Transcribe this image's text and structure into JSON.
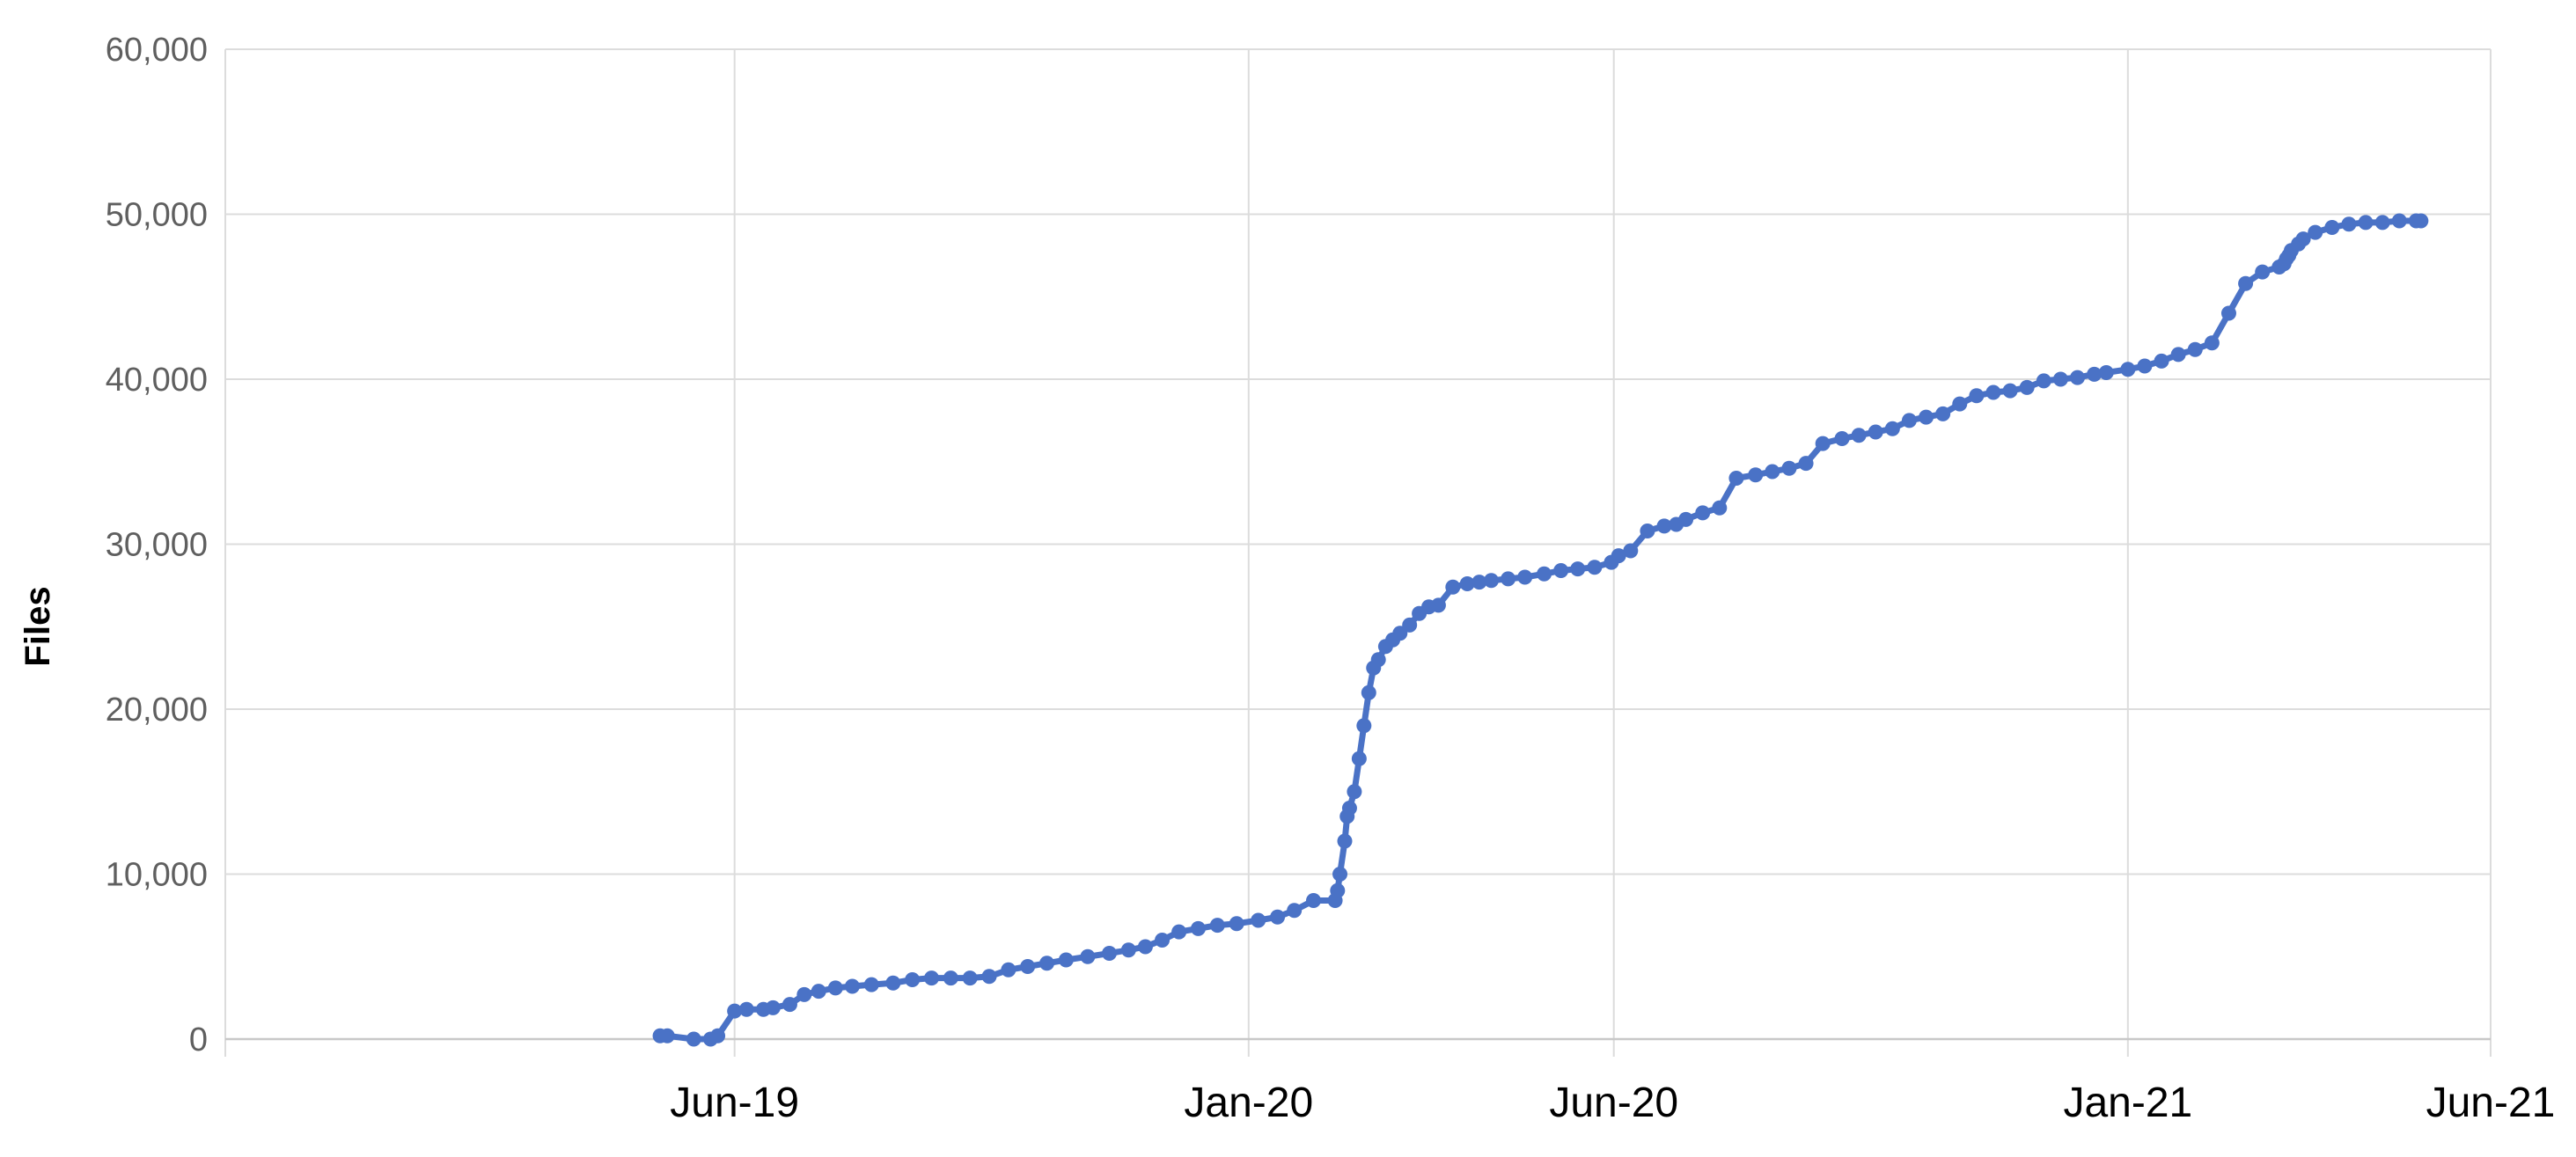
{
  "chart_data": {
    "type": "line",
    "title": "",
    "xlabel": "",
    "ylabel": "Files",
    "ylim": [
      0,
      60000
    ],
    "xlim": [
      "2018-11-01",
      "2021-06-01"
    ],
    "grid": true,
    "legend": "none",
    "y_ticks": [
      {
        "value": 0,
        "label": "0"
      },
      {
        "value": 10000,
        "label": "10,000"
      },
      {
        "value": 20000,
        "label": "20,000"
      },
      {
        "value": 30000,
        "label": "30,000"
      },
      {
        "value": 40000,
        "label": "40,000"
      },
      {
        "value": 50000,
        "label": "50,000"
      },
      {
        "value": 60000,
        "label": "60,000"
      }
    ],
    "x_ticks": [
      {
        "date": "2019-06-01",
        "label": "Jun-19"
      },
      {
        "date": "2020-01-01",
        "label": "Jan-20"
      },
      {
        "date": "2020-06-01",
        "label": "Jun-20"
      },
      {
        "date": "2021-01-01",
        "label": "Jan-21"
      },
      {
        "date": "2021-06-01",
        "label": "Jun-21"
      }
    ],
    "series": [
      {
        "color": "#4a72c6",
        "x": [
          "2019-05-01",
          "2019-05-04",
          "2019-05-15",
          "2019-05-22",
          "2019-05-25",
          "2019-06-01",
          "2019-06-06",
          "2019-06-13",
          "2019-06-17",
          "2019-06-24",
          "2019-06-30",
          "2019-07-06",
          "2019-07-13",
          "2019-07-20",
          "2019-07-28",
          "2019-08-06",
          "2019-08-14",
          "2019-08-22",
          "2019-08-30",
          "2019-09-07",
          "2019-09-15",
          "2019-09-23",
          "2019-10-01",
          "2019-10-09",
          "2019-10-17",
          "2019-10-26",
          "2019-11-04",
          "2019-11-12",
          "2019-11-19",
          "2019-11-26",
          "2019-12-03",
          "2019-12-11",
          "2019-12-19",
          "2019-12-27",
          "2020-01-05",
          "2020-01-13",
          "2020-01-20",
          "2020-01-28",
          "2020-02-06",
          "2020-02-07",
          "2020-02-08",
          "2020-02-10",
          "2020-02-11",
          "2020-02-12",
          "2020-02-14",
          "2020-02-16",
          "2020-02-18",
          "2020-02-20",
          "2020-02-22",
          "2020-02-24",
          "2020-02-27",
          "2020-03-01",
          "2020-03-04",
          "2020-03-08",
          "2020-03-12",
          "2020-03-16",
          "2020-03-20",
          "2020-03-26",
          "2020-04-01",
          "2020-04-06",
          "2020-04-11",
          "2020-04-18",
          "2020-04-25",
          "2020-05-03",
          "2020-05-10",
          "2020-05-17",
          "2020-05-24",
          "2020-05-31",
          "2020-06-03",
          "2020-06-08",
          "2020-06-15",
          "2020-06-22",
          "2020-06-27",
          "2020-07-01",
          "2020-07-08",
          "2020-07-15",
          "2020-07-22",
          "2020-07-30",
          "2020-08-06",
          "2020-08-13",
          "2020-08-20",
          "2020-08-27",
          "2020-09-04",
          "2020-09-11",
          "2020-09-18",
          "2020-09-25",
          "2020-10-02",
          "2020-10-09",
          "2020-10-16",
          "2020-10-23",
          "2020-10-30",
          "2020-11-06",
          "2020-11-13",
          "2020-11-20",
          "2020-11-27",
          "2020-12-04",
          "2020-12-11",
          "2020-12-18",
          "2020-12-23",
          "2021-01-01",
          "2021-01-08",
          "2021-01-15",
          "2021-01-22",
          "2021-01-29",
          "2021-02-05",
          "2021-02-12",
          "2021-02-19",
          "2021-02-26",
          "2021-03-05",
          "2021-03-07",
          "2021-03-08",
          "2021-03-09",
          "2021-03-10",
          "2021-03-13",
          "2021-03-15",
          "2021-03-20",
          "2021-03-27",
          "2021-04-03",
          "2021-04-10",
          "2021-04-17",
          "2021-04-24",
          "2021-05-01",
          "2021-05-03"
        ],
        "values": [
          200,
          200,
          0,
          0,
          200,
          1700,
          1800,
          1800,
          1900,
          2100,
          2700,
          2900,
          3100,
          3200,
          3300,
          3400,
          3600,
          3700,
          3700,
          3700,
          3800,
          4200,
          4400,
          4600,
          4800,
          5000,
          5200,
          5400,
          5600,
          6000,
          6500,
          6700,
          6900,
          7000,
          7200,
          7400,
          7800,
          8400,
          8400,
          9000,
          10000,
          12000,
          13500,
          14000,
          15000,
          17000,
          19000,
          21000,
          22500,
          23000,
          23800,
          24200,
          24600,
          25100,
          25800,
          26200,
          26300,
          27400,
          27600,
          27700,
          27800,
          27900,
          28000,
          28200,
          28400,
          28500,
          28600,
          28900,
          29300,
          29600,
          30800,
          31100,
          31200,
          31500,
          31900,
          32200,
          34000,
          34200,
          34400,
          34600,
          34900,
          36100,
          36400,
          36600,
          36800,
          37000,
          37500,
          37700,
          37900,
          38500,
          39000,
          39200,
          39300,
          39500,
          39900,
          40000,
          40100,
          40300,
          40400,
          40600,
          40800,
          41100,
          41500,
          41800,
          42200,
          44000,
          45800,
          46500,
          46800,
          47000,
          47300,
          47500,
          47800,
          48200,
          48500,
          48900,
          49200,
          49400,
          49500,
          49500,
          49600,
          49600,
          49600
        ]
      }
    ]
  }
}
